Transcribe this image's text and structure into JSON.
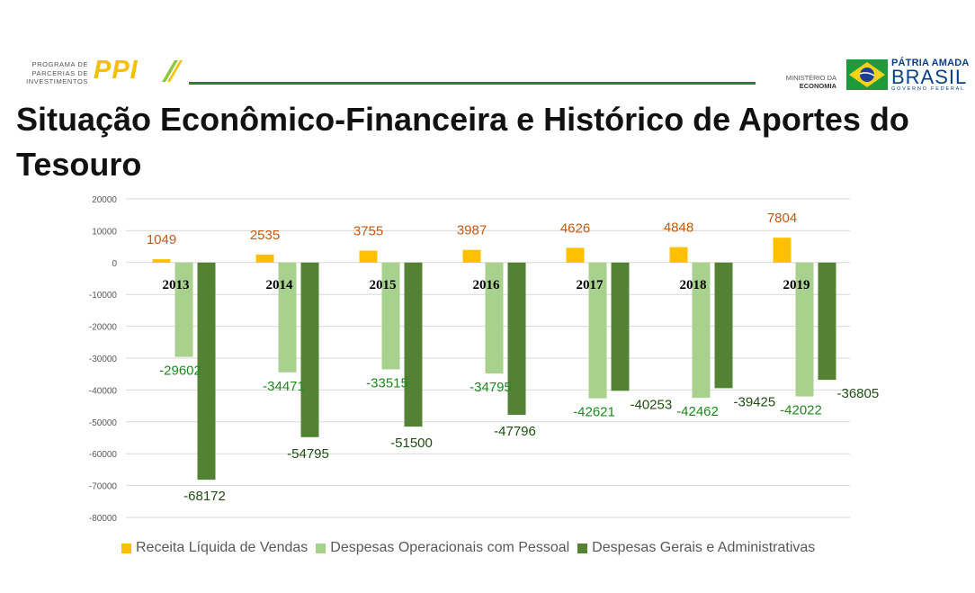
{
  "header": {
    "ppi_text_lines": [
      "PROGRAMA DE",
      "PARCERIAS DE",
      "INVESTIMENTOS"
    ],
    "ppi_mark": "PPI",
    "ministerio_lines": [
      "MINISTÉRIO DA",
      "ECONOMIA"
    ],
    "brasil_line1": "PÁTRIA AMADA",
    "brasil_line2": "BRASIL",
    "brasil_line3": "GOVERNO FEDERAL"
  },
  "title": "Situação Econômico-Financeira e Histórico de Aportes do Tesouro",
  "colors": {
    "receita": "#ffc000",
    "pessoal": "#a9d18e",
    "gerais": "#548235",
    "receita_label": "#c55a11",
    "pessoal_label": "#1e8a1e",
    "gerais_label": "#1f4e12",
    "grid": "#d9d9d9",
    "green_rule": "#1e8a1e",
    "ppi_yellow": "#f5c000",
    "brasil_blue": "#0a3f8c"
  },
  "chart_data": {
    "type": "bar",
    "categories": [
      "2013",
      "2014",
      "2015",
      "2016",
      "2017",
      "2018",
      "2019"
    ],
    "series": [
      {
        "name": "Receita Líquida de Vendas",
        "values": [
          1049,
          2535,
          3755,
          3987,
          4626,
          4848,
          7804
        ]
      },
      {
        "name": "Despesas Operacionais com Pessoal",
        "values": [
          -29602,
          -34471,
          -33515,
          -34795,
          -42621,
          -42462,
          -42022
        ]
      },
      {
        "name": "Despesas Gerais e Administrativas",
        "values": [
          -68172,
          -54795,
          -51500,
          -47796,
          -40253,
          -39425,
          -36805
        ]
      }
    ],
    "y_ticks": [
      20000,
      10000,
      0,
      -10000,
      -20000,
      -30000,
      -40000,
      -50000,
      -60000,
      -70000,
      -80000
    ],
    "ylim": [
      -80000,
      20000
    ],
    "grid": true,
    "legend_position": "bottom",
    "data_labels": true
  }
}
